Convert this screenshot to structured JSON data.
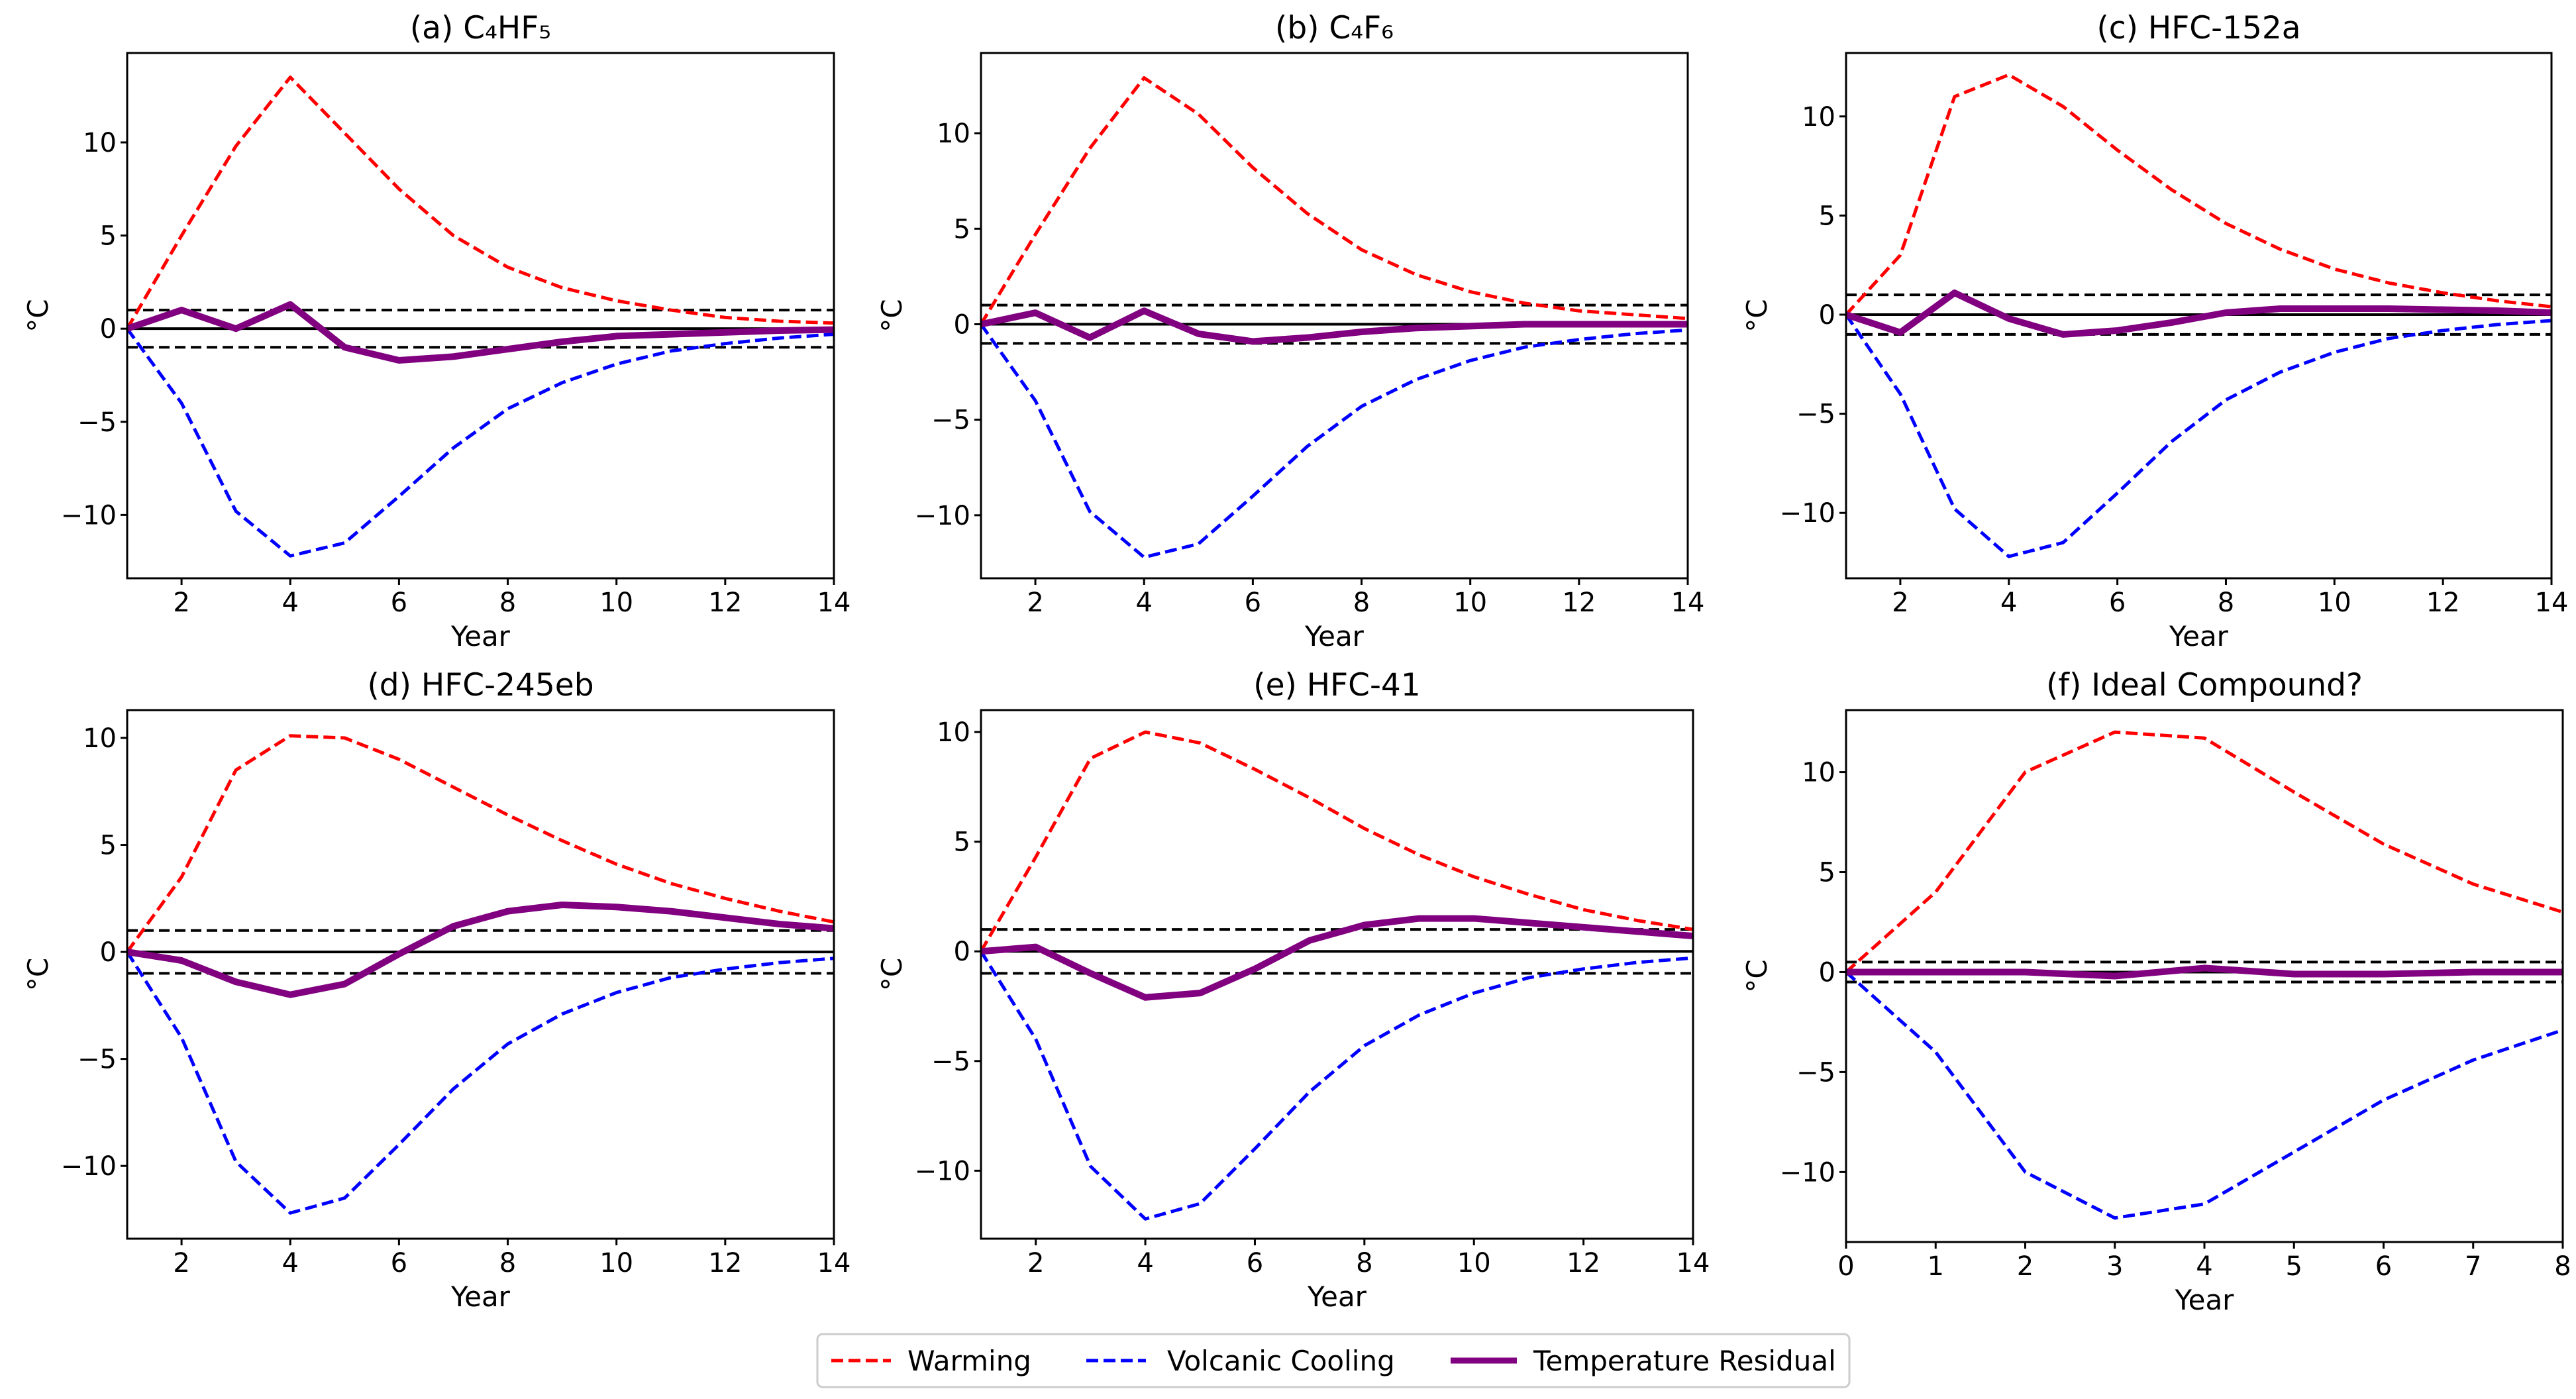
{
  "legend": {
    "items": [
      {
        "label": "Warming",
        "color": "#ff0000",
        "style": "dashed"
      },
      {
        "label": "Volcanic Cooling",
        "color": "#0000ff",
        "style": "dashed"
      },
      {
        "label": "Temperature Residual",
        "color": "#800080",
        "style": "solid"
      }
    ]
  },
  "chart_data": [
    {
      "type": "line",
      "title": "(a) C₄HF₅",
      "xlabel": "Year",
      "ylabel": "°C",
      "xlim": [
        1,
        14
      ],
      "ylim": [
        -13.4,
        14.8
      ],
      "xticks": [
        2,
        4,
        6,
        8,
        10,
        12,
        14
      ],
      "yticks": [
        -10,
        -5,
        0,
        5,
        10
      ],
      "threshold": 1,
      "x": [
        1,
        2,
        3,
        4,
        5,
        6,
        7,
        8,
        9,
        10,
        11,
        12,
        13,
        14
      ],
      "series": [
        {
          "name": "Warming",
          "values": [
            0,
            5,
            9.8,
            13.5,
            10.5,
            7.5,
            5,
            3.3,
            2.2,
            1.5,
            1,
            0.6,
            0.4,
            0.3
          ]
        },
        {
          "name": "Volcanic Cooling",
          "values": [
            0,
            -4,
            -9.8,
            -12.2,
            -11.5,
            -9,
            -6.4,
            -4.3,
            -2.9,
            -1.9,
            -1.2,
            -0.8,
            -0.5,
            -0.3
          ]
        },
        {
          "name": "Temperature Residual",
          "values": [
            0,
            1,
            0,
            1.3,
            -1,
            -1.7,
            -1.5,
            -1.1,
            -0.7,
            -0.4,
            -0.3,
            -0.2,
            -0.1,
            -0.05
          ]
        }
      ]
    },
    {
      "type": "line",
      "title": "(b) C₄F₆",
      "xlabel": "Year",
      "ylabel": "°C",
      "xlim": [
        1,
        14
      ],
      "ylim": [
        -13.3,
        14.2
      ],
      "xticks": [
        2,
        4,
        6,
        8,
        10,
        12,
        14
      ],
      "yticks": [
        -10,
        -5,
        0,
        5,
        10
      ],
      "threshold": 1,
      "x": [
        1,
        2,
        3,
        4,
        5,
        6,
        7,
        8,
        9,
        10,
        11,
        12,
        13,
        14
      ],
      "series": [
        {
          "name": "Warming",
          "values": [
            0,
            4.7,
            9.2,
            12.9,
            11,
            8.2,
            5.8,
            3.9,
            2.6,
            1.7,
            1.1,
            0.7,
            0.5,
            0.3
          ]
        },
        {
          "name": "Volcanic Cooling",
          "values": [
            0,
            -4,
            -9.8,
            -12.2,
            -11.5,
            -9,
            -6.4,
            -4.3,
            -2.9,
            -1.9,
            -1.2,
            -0.8,
            -0.5,
            -0.3
          ]
        },
        {
          "name": "Temperature Residual",
          "values": [
            0,
            0.6,
            -0.7,
            0.7,
            -0.5,
            -0.9,
            -0.7,
            -0.4,
            -0.2,
            -0.1,
            0,
            0,
            0,
            0
          ]
        }
      ]
    },
    {
      "type": "line",
      "title": "(c) HFC-152a",
      "xlabel": "Year",
      "ylabel": "°C",
      "xlim": [
        1,
        14
      ],
      "ylim": [
        -13.3,
        13.2
      ],
      "xticks": [
        2,
        4,
        6,
        8,
        10,
        12,
        14
      ],
      "yticks": [
        -10,
        -5,
        0,
        5,
        10
      ],
      "threshold": 1,
      "x": [
        1,
        2,
        3,
        4,
        5,
        6,
        7,
        8,
        9,
        10,
        11,
        12,
        13,
        14
      ],
      "series": [
        {
          "name": "Warming",
          "values": [
            0,
            3,
            11,
            12.1,
            10.5,
            8.3,
            6.3,
            4.6,
            3.3,
            2.3,
            1.6,
            1.1,
            0.7,
            0.4
          ]
        },
        {
          "name": "Volcanic Cooling",
          "values": [
            0,
            -4,
            -9.8,
            -12.2,
            -11.5,
            -9,
            -6.4,
            -4.3,
            -2.9,
            -1.9,
            -1.2,
            -0.8,
            -0.5,
            -0.3
          ]
        },
        {
          "name": "Temperature Residual",
          "values": [
            0,
            -0.9,
            1.1,
            -0.2,
            -1,
            -0.8,
            -0.4,
            0.1,
            0.3,
            0.3,
            0.3,
            0.25,
            0.2,
            0.1
          ]
        }
      ]
    },
    {
      "type": "line",
      "title": "(d) HFC-245eb",
      "xlabel": "Year",
      "ylabel": "°C",
      "xlim": [
        1,
        14
      ],
      "ylim": [
        -13.4,
        11.3
      ],
      "xticks": [
        2,
        4,
        6,
        8,
        10,
        12,
        14
      ],
      "yticks": [
        -10,
        -5,
        0,
        5,
        10
      ],
      "threshold": 1,
      "x": [
        1,
        2,
        3,
        4,
        5,
        6,
        7,
        8,
        9,
        10,
        11,
        12,
        13,
        14
      ],
      "series": [
        {
          "name": "Warming",
          "values": [
            0,
            3.5,
            8.5,
            10.1,
            10,
            9,
            7.7,
            6.4,
            5.2,
            4.1,
            3.2,
            2.5,
            1.9,
            1.4
          ]
        },
        {
          "name": "Volcanic Cooling",
          "values": [
            0,
            -4,
            -9.8,
            -12.2,
            -11.5,
            -9,
            -6.4,
            -4.3,
            -2.9,
            -1.9,
            -1.2,
            -0.8,
            -0.5,
            -0.3
          ]
        },
        {
          "name": "Temperature Residual",
          "values": [
            0,
            -0.4,
            -1.4,
            -2,
            -1.5,
            -0.1,
            1.2,
            1.9,
            2.2,
            2.1,
            1.9,
            1.6,
            1.3,
            1.1
          ]
        }
      ]
    },
    {
      "type": "line",
      "title": "(e) HFC-41",
      "xlabel": "Year",
      "ylabel": "°C",
      "xlim": [
        1,
        14
      ],
      "ylim": [
        -13.1,
        11
      ],
      "xticks": [
        2,
        4,
        6,
        8,
        10,
        12,
        14
      ],
      "yticks": [
        -10,
        -5,
        0,
        5,
        10
      ],
      "threshold": 1,
      "x": [
        1,
        2,
        3,
        4,
        5,
        6,
        7,
        8,
        9,
        10,
        11,
        12,
        13,
        14
      ],
      "series": [
        {
          "name": "Warming",
          "values": [
            0,
            4.3,
            8.8,
            10,
            9.5,
            8.3,
            7,
            5.6,
            4.4,
            3.4,
            2.6,
            1.9,
            1.4,
            1
          ]
        },
        {
          "name": "Volcanic Cooling",
          "values": [
            0,
            -4,
            -9.8,
            -12.2,
            -11.5,
            -9,
            -6.4,
            -4.3,
            -2.9,
            -1.9,
            -1.2,
            -0.8,
            -0.5,
            -0.3
          ]
        },
        {
          "name": "Temperature Residual",
          "values": [
            0,
            0.2,
            -1,
            -2.1,
            -1.9,
            -0.8,
            0.5,
            1.2,
            1.5,
            1.5,
            1.3,
            1.1,
            0.9,
            0.7
          ]
        }
      ]
    },
    {
      "type": "line",
      "title": "(f) Ideal Compound?",
      "xlabel": "Year",
      "ylabel": "°C",
      "xlim": [
        0,
        8
      ],
      "ylim": [
        -13.5,
        13.1
      ],
      "xticks": [
        0,
        1,
        2,
        3,
        4,
        5,
        6,
        7,
        8
      ],
      "yticks": [
        -10,
        -5,
        0,
        5,
        10
      ],
      "threshold": 0.5,
      "x": [
        0,
        1,
        2,
        3,
        4,
        5,
        6,
        7,
        8
      ],
      "series": [
        {
          "name": "Warming",
          "values": [
            0,
            4,
            10,
            12,
            11.7,
            9,
            6.4,
            4.4,
            3
          ]
        },
        {
          "name": "Volcanic Cooling",
          "values": [
            0,
            -4,
            -10,
            -12.3,
            -11.6,
            -9,
            -6.4,
            -4.4,
            -2.9
          ]
        },
        {
          "name": "Temperature Residual",
          "values": [
            0,
            0,
            0,
            -0.2,
            0.2,
            -0.1,
            -0.1,
            0,
            0
          ]
        }
      ]
    }
  ]
}
